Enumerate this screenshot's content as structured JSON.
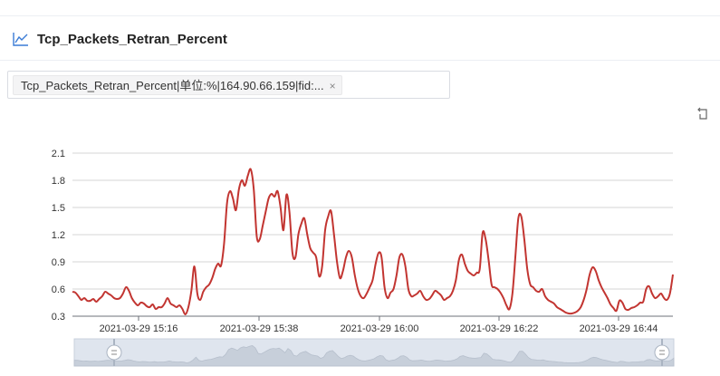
{
  "header": {
    "title": "Tcp_Packets_Retran_Percent",
    "icon": "line-chart-icon"
  },
  "filter": {
    "tag_label": "Tcp_Packets_Retran_Percent|单位:%|164.90.66.159|fid:...",
    "tag_close": "×"
  },
  "toolbar": {
    "restore_icon": "restore-icon"
  },
  "colors": {
    "series": "#c23531",
    "grid": "#d6d6d6",
    "axis": "#6e7079",
    "zoom_fill": "#dfe5ee"
  },
  "chart_data": {
    "type": "line",
    "title": "",
    "xlabel": "",
    "ylabel": "",
    "ylim": [
      0.3,
      2.1
    ],
    "yticks": [
      "0.3",
      "0.6",
      "0.9",
      "1.2",
      "1.5",
      "1.8",
      "2.1"
    ],
    "xtick_labels": [
      "2021-03-29 15:16",
      "2021-03-29 15:38",
      "2021-03-29 16:00",
      "2021-03-29 16:22",
      "2021-03-29 16:44"
    ],
    "x_start": "2021-03-29 15:04",
    "x_end": "2021-03-29 16:44",
    "grid": true,
    "legend": "none",
    "series": [
      {
        "values": [
          0.57,
          0.56,
          0.52,
          0.48,
          0.5,
          0.47,
          0.47,
          0.49,
          0.46,
          0.49,
          0.52,
          0.57,
          0.55,
          0.53,
          0.5,
          0.49,
          0.5,
          0.55,
          0.62,
          0.58,
          0.5,
          0.45,
          0.42,
          0.45,
          0.44,
          0.41,
          0.4,
          0.43,
          0.38,
          0.4,
          0.4,
          0.44,
          0.5,
          0.44,
          0.42,
          0.4,
          0.42,
          0.38,
          0.32,
          0.4,
          0.58,
          0.85,
          0.55,
          0.48,
          0.57,
          0.62,
          0.65,
          0.72,
          0.82,
          0.88,
          0.86,
          1.1,
          1.55,
          1.68,
          1.6,
          1.47,
          1.7,
          1.8,
          1.74,
          1.85,
          1.92,
          1.7,
          1.18,
          1.15,
          1.3,
          1.45,
          1.6,
          1.65,
          1.62,
          1.68,
          1.5,
          1.25,
          1.64,
          1.45,
          1.0,
          0.95,
          1.2,
          1.32,
          1.38,
          1.2,
          1.05,
          1.0,
          0.95,
          0.74,
          0.85,
          1.25,
          1.4,
          1.46,
          1.2,
          0.9,
          0.72,
          0.8,
          0.95,
          1.02,
          0.95,
          0.75,
          0.6,
          0.52,
          0.5,
          0.55,
          0.62,
          0.7,
          0.88,
          1.0,
          0.95,
          0.62,
          0.5,
          0.56,
          0.6,
          0.75,
          0.95,
          0.98,
          0.85,
          0.6,
          0.52,
          0.53,
          0.55,
          0.58,
          0.52,
          0.48,
          0.49,
          0.53,
          0.58,
          0.56,
          0.53,
          0.48,
          0.5,
          0.52,
          0.58,
          0.7,
          0.92,
          0.98,
          0.88,
          0.8,
          0.77,
          0.75,
          0.78,
          0.82,
          1.22,
          1.15,
          0.92,
          0.65,
          0.62,
          0.6,
          0.56,
          0.5,
          0.42,
          0.38,
          0.55,
          0.95,
          1.38,
          1.4,
          1.15,
          0.82,
          0.65,
          0.62,
          0.58,
          0.57,
          0.6,
          0.52,
          0.48,
          0.46,
          0.44,
          0.4,
          0.38,
          0.36,
          0.34,
          0.33,
          0.33,
          0.34,
          0.36,
          0.4,
          0.48,
          0.6,
          0.76,
          0.84,
          0.8,
          0.7,
          0.62,
          0.56,
          0.5,
          0.43,
          0.39,
          0.36,
          0.47,
          0.45,
          0.38,
          0.37,
          0.39,
          0.4,
          0.42,
          0.45,
          0.46,
          0.6,
          0.63,
          0.55,
          0.5,
          0.52,
          0.55,
          0.5,
          0.48,
          0.55,
          0.76
        ]
      }
    ]
  }
}
